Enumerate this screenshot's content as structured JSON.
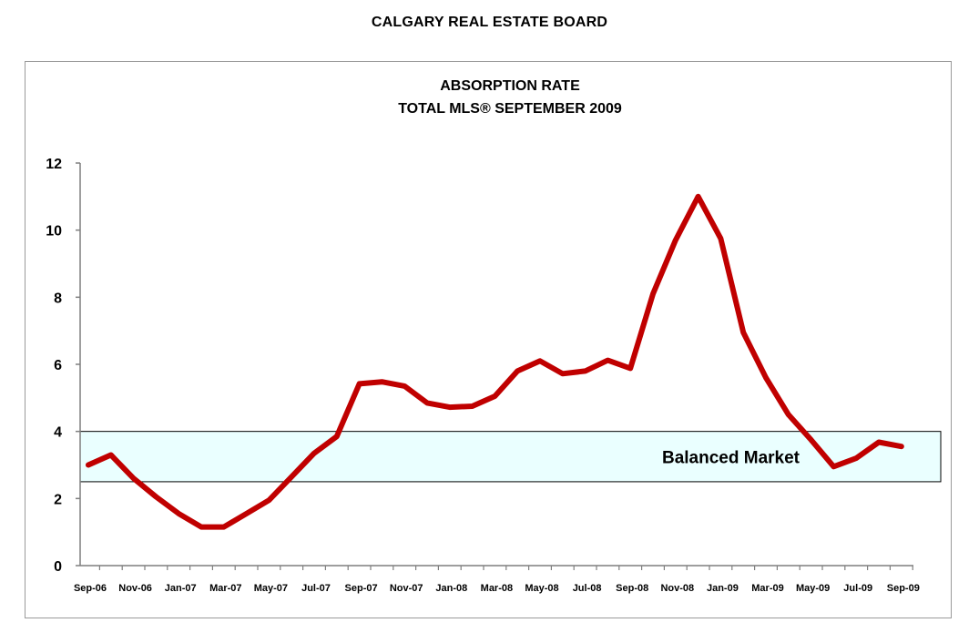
{
  "header": {
    "title": "CALGARY REAL ESTATE BOARD"
  },
  "chart_data": {
    "type": "line",
    "title": "ABSORPTION RATE",
    "subtitle": "TOTAL MLS® SEPTEMBER 2009",
    "xlabel": "",
    "ylabel": "",
    "ylim": [
      0,
      12
    ],
    "yticks": [
      0,
      2,
      4,
      6,
      8,
      10,
      12
    ],
    "grid": false,
    "x": [
      "Sep-06",
      "Oct-06",
      "Nov-06",
      "Dec-06",
      "Jan-07",
      "Feb-07",
      "Mar-07",
      "Apr-07",
      "May-07",
      "Jun-07",
      "Jul-07",
      "Aug-07",
      "Sep-07",
      "Oct-07",
      "Nov-07",
      "Dec-07",
      "Jan-08",
      "Feb-08",
      "Mar-08",
      "Apr-08",
      "May-08",
      "Jun-08",
      "Jul-08",
      "Aug-08",
      "Sep-08",
      "Oct-08",
      "Nov-08",
      "Dec-08",
      "Jan-09",
      "Feb-09",
      "Mar-09",
      "Apr-09",
      "May-09",
      "Jun-09",
      "Jul-09",
      "Aug-09",
      "Sep-09"
    ],
    "xtick_labels": [
      "Sep-06",
      "Nov-06",
      "Jan-07",
      "Mar-07",
      "May-07",
      "Jul-07",
      "Sep-07",
      "Nov-07",
      "Jan-08",
      "Mar-08",
      "May-08",
      "Jul-08",
      "Sep-08",
      "Nov-08",
      "Jan-09",
      "Mar-09",
      "May-09",
      "Jul-09",
      "Sep-09"
    ],
    "series": [
      {
        "color": "#c00000",
        "values": [
          3.0,
          3.3,
          2.6,
          2.05,
          1.55,
          1.15,
          1.15,
          1.55,
          1.95,
          2.65,
          3.35,
          3.85,
          5.42,
          5.48,
          5.35,
          4.85,
          4.72,
          4.75,
          5.05,
          5.8,
          6.1,
          5.72,
          5.8,
          6.12,
          5.88,
          8.1,
          9.7,
          11.0,
          9.75,
          6.95,
          5.6,
          4.5,
          3.75,
          2.95,
          3.2,
          3.68,
          3.55
        ]
      }
    ],
    "band": {
      "label": "Balanced Market",
      "from": 2.5,
      "to": 4,
      "color": "#eaffff"
    }
  }
}
